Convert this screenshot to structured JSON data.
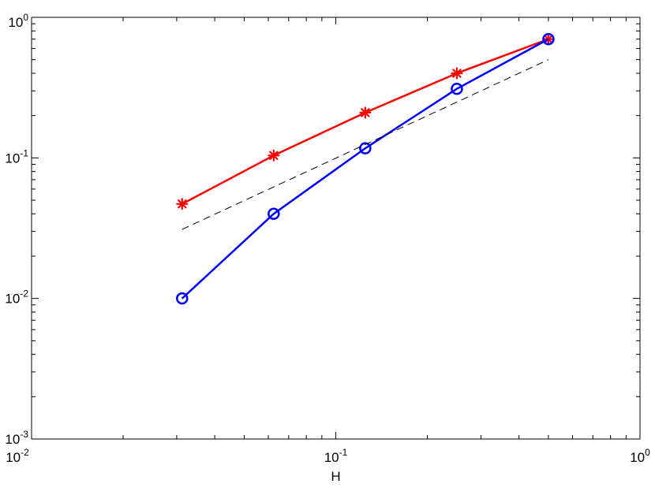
{
  "chart_data": {
    "type": "line",
    "title": "",
    "xlabel": "H",
    "ylabel": "",
    "xscale": "log",
    "yscale": "log",
    "xlim": [
      0.01,
      1
    ],
    "ylim": [
      0.001,
      1
    ],
    "grid": false,
    "x_ticks": [
      {
        "base": "10",
        "exp": "-2"
      },
      {
        "base": "10",
        "exp": "-1"
      },
      {
        "base": "10",
        "exp": "0"
      }
    ],
    "y_ticks": [
      {
        "base": "10",
        "exp": "-3"
      },
      {
        "base": "10",
        "exp": "-2"
      },
      {
        "base": "10",
        "exp": "-1"
      },
      {
        "base": "10",
        "exp": "0"
      }
    ],
    "x": [
      0.03125,
      0.0625,
      0.125,
      0.25,
      0.5
    ],
    "series": [
      {
        "values": [
          0.047,
          0.104,
          0.21,
          0.4,
          0.7
        ],
        "color": "#ff0000",
        "marker": "asterisk",
        "line": "solid"
      },
      {
        "values": [
          0.01,
          0.04,
          0.117,
          0.31,
          0.7
        ],
        "color": "#0000ff",
        "marker": "circle",
        "line": "solid"
      },
      {
        "x": [
          0.03125,
          0.5
        ],
        "values": [
          0.031,
          0.5
        ],
        "color": "#000000",
        "marker": "none",
        "line": "dashed"
      }
    ]
  }
}
